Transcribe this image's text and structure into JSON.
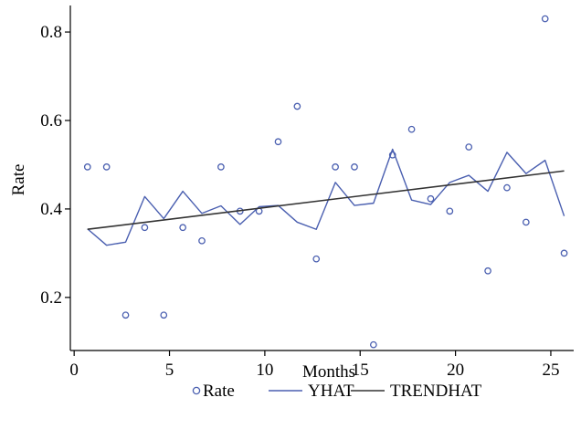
{
  "chart_data": {
    "type": "scatter",
    "xlabel": "Months",
    "ylabel": "Rate",
    "xlim": [
      -0.2,
      26.2
    ],
    "ylim": [
      0.08,
      0.86
    ],
    "xticks": [
      0,
      5,
      10,
      15,
      20,
      25
    ],
    "yticks": [
      0.2,
      0.4,
      0.6,
      0.8
    ],
    "xtick_labels": [
      "0",
      "5",
      "10",
      "15",
      "20",
      "25"
    ],
    "ytick_labels": [
      "0.2",
      "0.4",
      "0.6",
      "0.8"
    ],
    "grid": false,
    "legend_position": "bottom",
    "series": [
      {
        "name": "Rate",
        "kind": "markers",
        "color": "#4a5fb0",
        "x": [
          0.7,
          1.7,
          2.7,
          3.7,
          4.7,
          5.7,
          6.7,
          7.7,
          8.7,
          9.7,
          10.7,
          11.7,
          12.7,
          13.7,
          14.7,
          15.7,
          16.7,
          17.7,
          18.7,
          19.7,
          20.7,
          21.7,
          22.7,
          23.7,
          24.7,
          25.7
        ],
        "y": [
          0.495,
          0.495,
          0.16,
          0.358,
          0.16,
          0.358,
          0.328,
          0.495,
          0.395,
          0.395,
          0.552,
          0.632,
          0.287,
          0.495,
          0.495,
          0.093,
          0.522,
          0.58,
          0.423,
          0.395,
          0.54,
          0.26,
          0.448,
          0.37,
          0.83,
          0.3
        ]
      },
      {
        "name": "YHAT",
        "kind": "line",
        "color": "#4a5fb0",
        "x": [
          0.7,
          1.7,
          2.7,
          3.7,
          4.7,
          5.7,
          6.7,
          7.7,
          8.7,
          9.7,
          10.7,
          11.7,
          12.7,
          13.7,
          14.7,
          15.7,
          16.7,
          17.7,
          18.7,
          19.7,
          20.7,
          21.7,
          22.7,
          23.7,
          24.7,
          25.7
        ],
        "y": [
          0.355,
          0.318,
          0.325,
          0.428,
          0.378,
          0.44,
          0.39,
          0.407,
          0.365,
          0.405,
          0.408,
          0.37,
          0.354,
          0.46,
          0.408,
          0.413,
          0.535,
          0.42,
          0.41,
          0.46,
          0.476,
          0.44,
          0.528,
          0.48,
          0.51,
          0.384
        ]
      },
      {
        "name": "TRENDHAT",
        "kind": "line",
        "color": "#333333",
        "x": [
          0.7,
          25.7
        ],
        "y": [
          0.354,
          0.486
        ]
      }
    ]
  }
}
